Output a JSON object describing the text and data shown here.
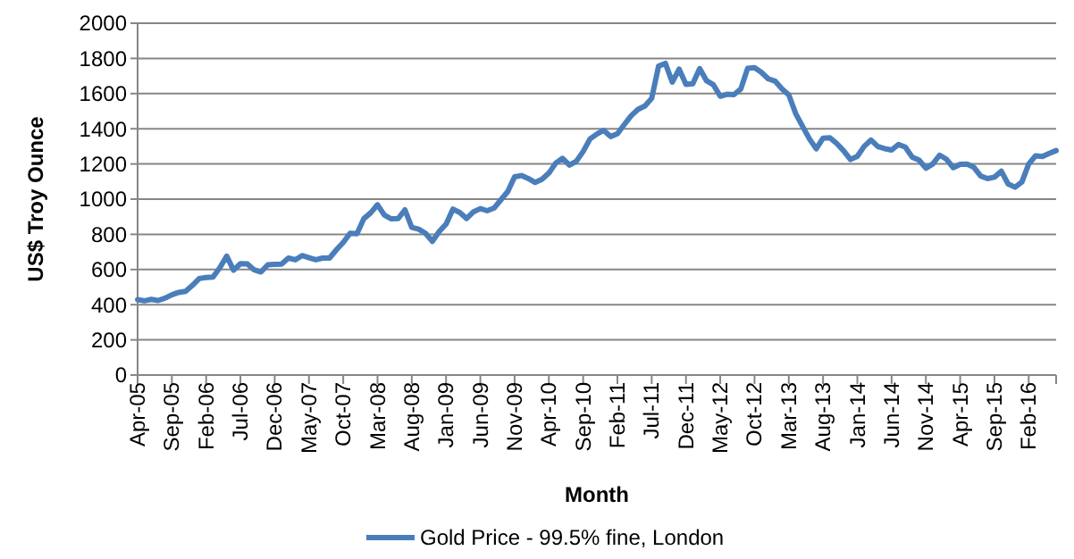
{
  "chart_data": {
    "type": "line",
    "xlabel": "Month",
    "ylabel": "US$ Troy Ounce",
    "categories": [
      "Apr-05",
      null,
      null,
      null,
      null,
      "Sep-05",
      null,
      null,
      null,
      null,
      "Feb-06",
      null,
      null,
      null,
      null,
      "Jul-06",
      null,
      null,
      null,
      null,
      "Dec-06",
      null,
      null,
      null,
      null,
      "May-07",
      null,
      null,
      null,
      null,
      "Oct-07",
      null,
      null,
      null,
      null,
      "Mar-08",
      null,
      null,
      null,
      null,
      "Aug-08",
      null,
      null,
      null,
      null,
      "Jan-09",
      null,
      null,
      null,
      null,
      "Jun-09",
      null,
      null,
      null,
      null,
      "Nov-09",
      null,
      null,
      null,
      null,
      "Apr-10",
      null,
      null,
      null,
      null,
      "Sep-10",
      null,
      null,
      null,
      null,
      "Feb-11",
      null,
      null,
      null,
      null,
      "Jul-11",
      null,
      null,
      null,
      null,
      "Dec-11",
      null,
      null,
      null,
      null,
      "May-12",
      null,
      null,
      null,
      null,
      "Oct-12",
      null,
      null,
      null,
      null,
      "Mar-13",
      null,
      null,
      null,
      null,
      "Aug-13",
      null,
      null,
      null,
      null,
      "Jan-14",
      null,
      null,
      null,
      null,
      "Jun-14",
      null,
      null,
      null,
      null,
      "Nov-14",
      null,
      null,
      null,
      null,
      "Apr-15",
      null,
      null,
      null,
      null,
      "Sep-15",
      null,
      null,
      null,
      null,
      "Feb-16",
      null,
      null,
      null,
      null
    ],
    "series": [
      {
        "name": "Gold Price - 99.5% fine, London",
        "color": "#4a7ebb",
        "values": [
          429,
          422,
          430,
          424,
          437,
          456,
          470,
          476,
          510,
          549,
          555,
          557,
          610,
          676,
          596,
          633,
          632,
          598,
          586,
          627,
          629,
          631,
          665,
          655,
          679,
          667,
          655,
          665,
          665,
          712,
          754,
          806,
          803,
          889,
          922,
          968,
          909,
          888,
          889,
          939,
          839,
          829,
          806,
          760,
          816,
          858,
          943,
          924,
          890,
          928,
          946,
          934,
          949,
          996,
          1043,
          1127,
          1134,
          1117,
          1095,
          1113,
          1148,
          1205,
          1232,
          1193,
          1215,
          1271,
          1342,
          1370,
          1391,
          1356,
          1372,
          1424,
          1474,
          1510,
          1529,
          1573,
          1756,
          1772,
          1665,
          1739,
          1652,
          1656,
          1742,
          1673,
          1650,
          1585,
          1596,
          1594,
          1626,
          1744,
          1747,
          1721,
          1684,
          1671,
          1627,
          1593,
          1487,
          1414,
          1343,
          1286,
          1347,
          1349,
          1316,
          1275,
          1225,
          1244,
          1300,
          1336,
          1299,
          1287,
          1279,
          1311,
          1296,
          1239,
          1222,
          1176,
          1200,
          1250,
          1227,
          1179,
          1198,
          1199,
          1181,
          1131,
          1117,
          1125,
          1159,
          1086,
          1068,
          1097,
          1200,
          1246,
          1242,
          1260,
          1276
        ]
      }
    ],
    "ylim": [
      0,
      2000
    ],
    "yticks": [
      0,
      200,
      400,
      600,
      800,
      1000,
      1200,
      1400,
      1600,
      1800,
      2000
    ],
    "grid": "y",
    "legend": "bottom",
    "marker": "none",
    "line_style": "solid"
  }
}
